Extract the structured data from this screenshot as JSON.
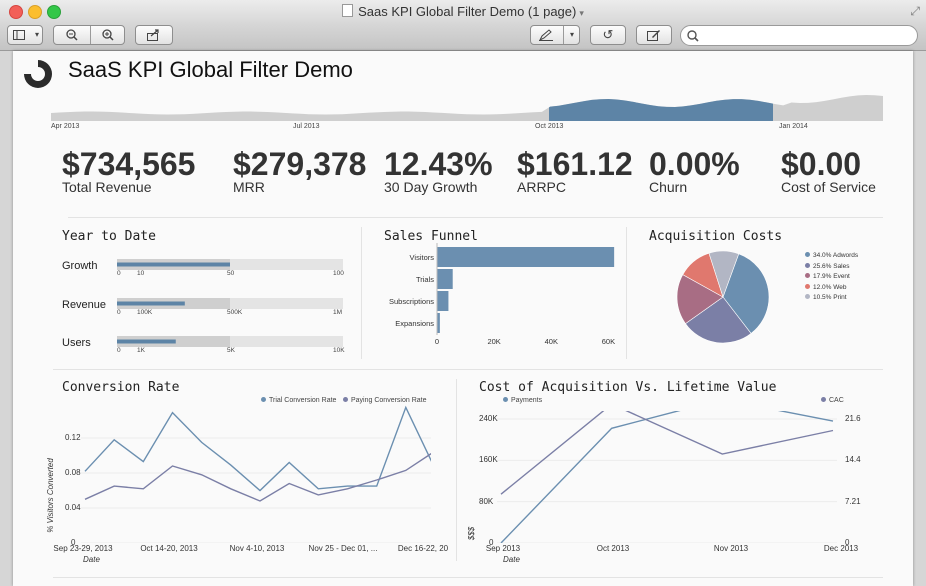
{
  "window": {
    "title": "Saas KPI Global Filter Demo (1 page)"
  },
  "toolbar": {
    "search_placeholder": ""
  },
  "dashboard": {
    "title": "SaaS KPI Global Filter Demo",
    "timeline": {
      "labels": [
        "Apr 2013",
        "Jul 2013",
        "Oct 2013",
        "Jan 2014"
      ]
    },
    "kpis": [
      {
        "value": "$734,565",
        "label": "Total Revenue"
      },
      {
        "value": "$279,378",
        "label": "MRR"
      },
      {
        "value": "12.43%",
        "label": "30 Day Growth"
      },
      {
        "value": "$161.12",
        "label": "ARRPC"
      },
      {
        "value": "0.00%",
        "label": "Churn"
      },
      {
        "value": "$0.00",
        "label": "Cost of Service"
      }
    ],
    "ytd": {
      "title": "Year to Date",
      "rows": [
        {
          "label": "Growth",
          "ticks": [
            "0",
            "10",
            "50",
            "100"
          ],
          "value": 50,
          "max": 100,
          "band": 50
        },
        {
          "label": "Revenue",
          "ticks": [
            "0",
            "100K",
            "500K",
            "1M"
          ],
          "value": 300,
          "max": 1000,
          "band": 500
        },
        {
          "label": "Users",
          "ticks": [
            "0",
            "1K",
            "5K",
            "10K"
          ],
          "value": 2600,
          "max": 10000,
          "band": 5000
        }
      ]
    },
    "funnel": {
      "title": "Sales Funnel",
      "categories": [
        "Visitors",
        "Trials",
        "Subscriptions",
        "Expansions"
      ],
      "values": [
        62000,
        5500,
        4000,
        1000
      ],
      "xticks": [
        "0",
        "20K",
        "40K",
        "60K"
      ],
      "xmax": 70000
    },
    "acquisition": {
      "title": "Acquisition Costs",
      "legend": [
        "34.0% Adwords",
        "25.6% Sales",
        "17.9% Event",
        "12.0% Web",
        "10.5% Print"
      ],
      "values": [
        34.0,
        25.6,
        17.9,
        12.0,
        10.5
      ],
      "colors": [
        "#6b8fb0",
        "#7b7fa6",
        "#a86d84",
        "#e0786e",
        "#b2b6c4"
      ]
    },
    "conversion": {
      "title": "Conversion Rate",
      "legend": [
        "Trial Conversion Rate",
        "Paying Conversion Rate"
      ],
      "ylabel": "% Visitors Converted",
      "yticks": [
        "0.12",
        "0.08",
        "0.04",
        "0"
      ],
      "xticks": [
        "Sep 23-29, 2013",
        "Oct 14-20, 2013",
        "Nov 4-10, 2013",
        "Nov 25 - Dec 01, ...",
        "Dec 16-22, 20"
      ],
      "xlabel": "Date",
      "ymax": 0.16,
      "series": [
        {
          "name": "Trial Conversion Rate",
          "color": "#6b8fb0",
          "values": [
            0.082,
            0.118,
            0.093,
            0.149,
            0.115,
            0.089,
            0.06,
            0.092,
            0.062,
            0.065,
            0.065,
            0.155,
            0.085
          ]
        },
        {
          "name": "Paying Conversion Rate",
          "color": "#7b7fa6",
          "values": [
            0.05,
            0.065,
            0.062,
            0.088,
            0.078,
            0.062,
            0.048,
            0.068,
            0.055,
            0.062,
            0.072,
            0.083,
            0.105
          ]
        }
      ]
    },
    "cac": {
      "title": "Cost of Acquisition Vs. Lifetime Value",
      "legend": [
        "Payments",
        "CAC"
      ],
      "ylabel": "$$$",
      "yticks_left": [
        "240K",
        "160K",
        "80K",
        "0"
      ],
      "yticks_right": [
        "21.6",
        "14.4",
        "7.21",
        "0"
      ],
      "xticks": [
        "Sep 2013",
        "Oct 2013",
        "Nov 2013",
        "Dec 2013"
      ],
      "xlabel": "Date",
      "series": [
        {
          "name": "Payments",
          "color": "#6b8fb0",
          "values": [
            0,
            222000,
            278000,
            236000
          ]
        },
        {
          "name": "CAC",
          "color": "#7b7fa6",
          "values": [
            8.5,
            24.2,
            15.5,
            19.6
          ]
        }
      ]
    }
  }
}
